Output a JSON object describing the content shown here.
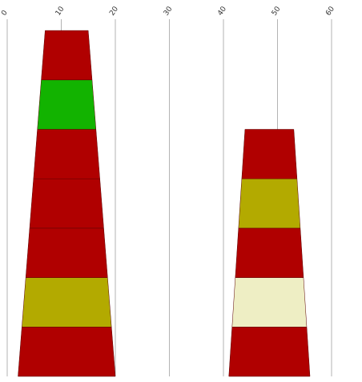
{
  "chart_data": {
    "type": "bar",
    "subtype": "stacked-tapered-cone",
    "title": "",
    "xlabel": "",
    "ylabel": "",
    "xlim": [
      0,
      60
    ],
    "x_ticks": [
      0,
      10,
      20,
      30,
      40,
      50,
      60
    ],
    "x_tick_labels": [
      "0",
      "10",
      "20",
      "30",
      "40",
      "50",
      "60"
    ],
    "tick_label_rotation": "-45deg, top edge",
    "grid": "vertical",
    "legend": "none",
    "stacks": [
      {
        "center": 11,
        "base_width": 18,
        "segment_count": 7,
        "segments": [
          {
            "color": "#b00000"
          },
          {
            "color": "#b3aa00"
          },
          {
            "color": "#b00000"
          },
          {
            "color": "#b00000"
          },
          {
            "color": "#b00000"
          },
          {
            "color": "#12b300"
          },
          {
            "color": "#b00000"
          }
        ]
      },
      {
        "center": 48.5,
        "base_width": 15,
        "segment_count": 5,
        "segments": [
          {
            "color": "#b00000"
          },
          {
            "color": "#eeeec4"
          },
          {
            "color": "#b00000"
          },
          {
            "color": "#b3aa00"
          },
          {
            "color": "#b00000"
          }
        ]
      }
    ]
  }
}
